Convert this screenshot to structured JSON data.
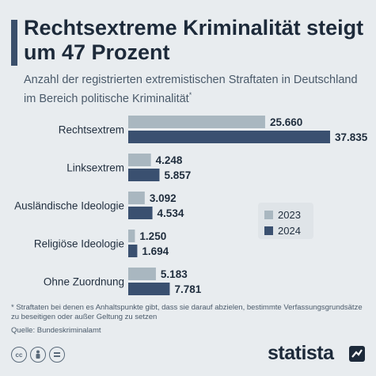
{
  "header": {
    "title": "Rechtsextreme Kriminalität steigt um 47 Prozent",
    "subtitle": "Anzahl der registrierten extremistischen Straftaten in Deutschland im Bereich politische Kriminalität",
    "subtitle_mark": "*"
  },
  "chart_data": {
    "type": "bar",
    "orientation": "horizontal",
    "categories": [
      "Rechtsextrem",
      "Linksextrem",
      "Ausländische Ideologie",
      "Religiöse Ideologie",
      "Ohne Zuordnung"
    ],
    "series": [
      {
        "name": "2023",
        "values": [
          25660,
          4248,
          3092,
          1250,
          5183
        ],
        "labels": [
          "25.660",
          "4.248",
          "3.092",
          "1.250",
          "5.183"
        ],
        "color": "#a9b7c0"
      },
      {
        "name": "2024",
        "values": [
          37835,
          5857,
          4534,
          1694,
          7781
        ],
        "labels": [
          "37.835",
          "5.857",
          "4.534",
          "1.694",
          "7.781"
        ],
        "color": "#3a5070"
      }
    ],
    "xlim": [
      0,
      37835
    ],
    "legend_position": "right"
  },
  "footer": {
    "footnote": "* Straftaten bei denen es Anhaltspunkte gibt, dass sie darauf abzielen, bestimmte Verfassungsgrundsätze zu beseitigen oder außer Geltung zu setzen",
    "source": "Quelle: Bundeskriminalamt",
    "logo": "statista",
    "cc_icons": [
      "cc-icon",
      "by-icon",
      "nd-icon"
    ]
  }
}
